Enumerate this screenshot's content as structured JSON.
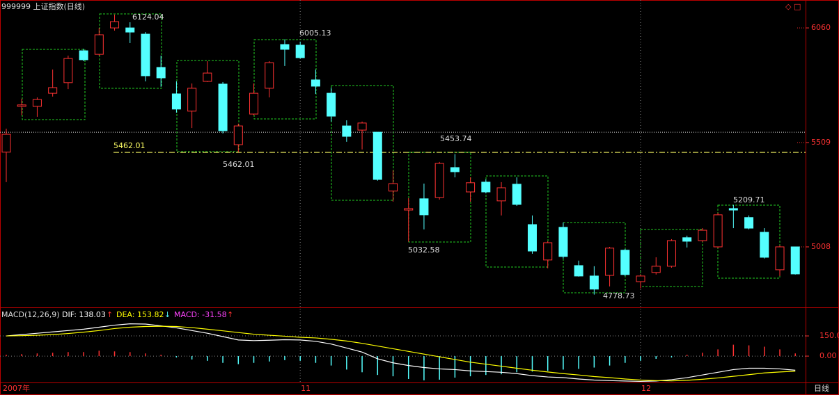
{
  "chart_data": [
    {
      "type": "candlestick",
      "title": "999999 上证指数(日线)",
      "categories": [
        "2007年",
        null,
        null,
        null,
        null,
        null,
        null,
        null,
        null,
        null,
        null,
        null,
        null,
        null,
        null,
        null,
        null,
        null,
        null,
        "11",
        null,
        null,
        null,
        null,
        null,
        null,
        null,
        null,
        null,
        null,
        null,
        null,
        null,
        null,
        null,
        null,
        null,
        null,
        null,
        null,
        null,
        "12",
        null,
        null,
        null,
        null,
        null,
        null,
        null,
        null,
        null,
        null
      ],
      "open": [
        5463,
        5683,
        5683,
        5746,
        5797,
        5950,
        5933,
        6060,
        6060,
        6030,
        5870,
        5743,
        5660,
        5803,
        5790,
        5499,
        5646,
        5770,
        5980,
        5977,
        5810,
        5746,
        5589,
        5569,
        5559,
        5276,
        5185,
        5239,
        5245,
        5389,
        5272,
        5319,
        5229,
        5309,
        5115,
        4945,
        5102,
        4918,
        4868,
        4871,
        4992,
        4841,
        4885,
        4915,
        5052,
        5038,
        5008,
        5192,
        5149,
        5078,
        4898,
        5008
      ],
      "high": [
        5576,
        5720,
        5726,
        5860,
        5927,
        5960,
        6060,
        6124.04,
        6087,
        6040,
        5927,
        5803,
        5793,
        5900,
        5800,
        5600,
        5793,
        5900,
        6005.13,
        5994,
        5860,
        5773,
        5616,
        5610,
        5559,
        5376,
        5242,
        5312,
        5416,
        5453.74,
        5342,
        5332,
        5319,
        5342,
        5159,
        5035,
        5125,
        4942,
        4915,
        5008,
        4998,
        4875,
        4958,
        5045,
        5062,
        5098,
        5172,
        5209.71,
        5159,
        5098,
        5015,
        5008
      ],
      "low": [
        5319,
        5640,
        5633,
        5730,
        5766,
        5900,
        5927,
        6047,
        5987,
        5803,
        5777,
        5653,
        5579,
        5800,
        5553,
        5462.01,
        5640,
        5726,
        5877,
        5913,
        5743,
        5610,
        5513,
        5476,
        5326,
        5225,
        5032.58,
        5092,
        5235,
        5342,
        5225,
        5265,
        5159,
        5205,
        4975,
        4905,
        4952,
        4865,
        4778.73,
        4818,
        4868,
        4808,
        4875,
        4908,
        5005,
        5032,
        5002,
        5098,
        5092,
        4952,
        4868,
        4875
      ],
      "close": [
        5549,
        5690,
        5716,
        5773,
        5913,
        5907,
        6027,
        6090,
        6040,
        5830,
        5820,
        5670,
        5770,
        5843,
        5566,
        5589,
        5746,
        5893,
        5957,
        5917,
        5780,
        5636,
        5539,
        5603,
        5332,
        5312,
        5192,
        5162,
        5409,
        5369,
        5316,
        5272,
        5292,
        5212,
        4988,
        5028,
        4962,
        4868,
        4805,
        5002,
        4875,
        4868,
        4915,
        5038,
        5035,
        5088,
        5162,
        5185,
        5098,
        4958,
        5008,
        4878
      ],
      "up_color": "#ff3232",
      "down_color": "#54ffff",
      "ylim": [
        4724,
        6194
      ],
      "yticks": [
        6060,
        5509,
        5008
      ],
      "hlines": [
        {
          "value": 5559,
          "style": "dotted",
          "color": "#dddddd"
        },
        {
          "value": 5462.01,
          "style": "dashdot",
          "color": "#ffff66"
        }
      ]
    },
    {
      "type": "macd",
      "title": "MACD(12,26,9)",
      "series": [
        {
          "color": "#ffffff",
          "values": [
            150,
            160,
            170,
            180,
            190,
            200,
            215,
            230,
            240,
            238,
            225,
            210,
            190,
            170,
            145,
            120,
            115,
            118,
            122,
            120,
            110,
            90,
            60,
            30,
            -20,
            -50,
            -70,
            -85,
            -95,
            -100,
            -110,
            -115,
            -120,
            -130,
            -145,
            -155,
            -160,
            -170,
            -178,
            -182,
            -185,
            -188,
            -185,
            -175,
            -160,
            -140,
            -120,
            -100,
            -90,
            -90,
            -95,
            -105
          ]
        },
        {
          "color": "#ffff00",
          "values": [
            150,
            152,
            155,
            160,
            168,
            178,
            190,
            205,
            215,
            220,
            222,
            220,
            212,
            200,
            188,
            175,
            163,
            155,
            148,
            140,
            135,
            125,
            112,
            95,
            75,
            55,
            35,
            15,
            -5,
            -25,
            -45,
            -60,
            -75,
            -90,
            -105,
            -118,
            -130,
            -140,
            -152,
            -160,
            -170,
            -178,
            -182,
            -184,
            -180,
            -172,
            -162,
            -150,
            -138,
            -125,
            -118,
            -112
          ]
        }
      ],
      "histogram": {
        "up_color": "#ff3232",
        "down_color": "#54ffff",
        "values": [
          10,
          15,
          20,
          25,
          30,
          30,
          40,
          35,
          30,
          20,
          10,
          -10,
          -25,
          -35,
          -50,
          -60,
          -50,
          -40,
          -30,
          -35,
          -50,
          -70,
          -100,
          -120,
          -140,
          -150,
          -170,
          -180,
          -175,
          -160,
          -150,
          -140,
          -135,
          -120,
          -115,
          -110,
          -100,
          -95,
          -85,
          -70,
          -50,
          -35,
          -20,
          -10,
          10,
          25,
          50,
          85,
          80,
          70,
          50,
          20
        ]
      },
      "readouts": [
        {
          "text": "DIF: 138.03",
          "color": "#ffffff",
          "arrow": "↑",
          "arrow_color": "#ff3232"
        },
        {
          "text": "DEA: 153.82",
          "color": "#ffff00",
          "arrow": "↓",
          "arrow_color": "#54ffff"
        },
        {
          "text": "MACD: -31.58",
          "color": "#ff44ff",
          "arrow": "↑",
          "arrow_color": "#ff3232"
        }
      ],
      "ylim": [
        -196,
        357
      ],
      "yticks": [
        {
          "value": 150,
          "label": "150.0"
        },
        {
          "value": 0,
          "label": "0.00"
        }
      ],
      "period": "日线"
    }
  ]
}
